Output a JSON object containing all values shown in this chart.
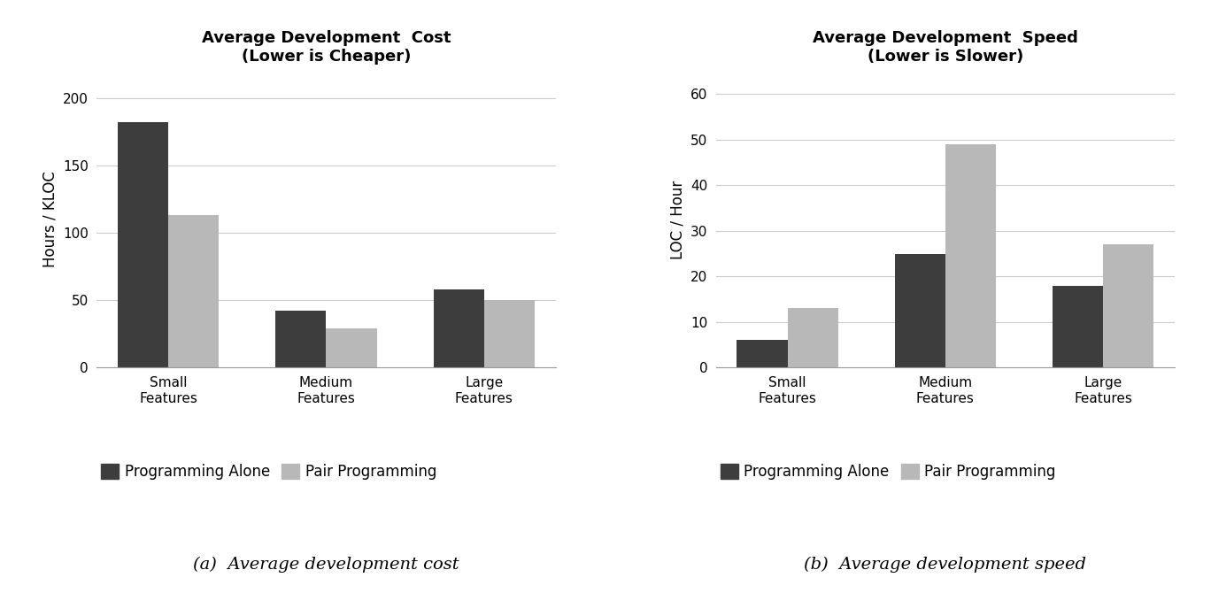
{
  "chart1": {
    "title": "Average Development  Cost\n(Lower is Cheaper)",
    "ylabel": "Hours / KLOC",
    "categories": [
      "Small\nFeatures",
      "Medium\nFeatures",
      "Large\nFeatures"
    ],
    "programming_alone": [
      182,
      42,
      58
    ],
    "pair_programming": [
      113,
      29,
      50
    ],
    "ylim": [
      0,
      220
    ],
    "yticks": [
      0,
      50,
      100,
      150,
      200
    ],
    "caption": "(a)  Average development cost"
  },
  "chart2": {
    "title": "Average Development  Speed\n(Lower is Slower)",
    "ylabel": "LOC / Hour",
    "categories": [
      "Small\nFeatures",
      "Medium\nFeatures",
      "Large\nFeatures"
    ],
    "programming_alone": [
      6,
      25,
      18
    ],
    "pair_programming": [
      13,
      49,
      27
    ],
    "ylim": [
      0,
      65
    ],
    "yticks": [
      0,
      10,
      20,
      30,
      40,
      50,
      60
    ],
    "caption": "(b)  Average development speed"
  },
  "color_alone": "#3d3d3d",
  "color_pair": "#b8b8b8",
  "legend_alone": "Programming Alone",
  "legend_pair": "Pair Programming",
  "bar_width": 0.32,
  "background_color": "#ffffff",
  "title_fontsize": 13,
  "axis_fontsize": 12,
  "tick_fontsize": 11,
  "legend_fontsize": 12,
  "caption_fontsize": 14
}
